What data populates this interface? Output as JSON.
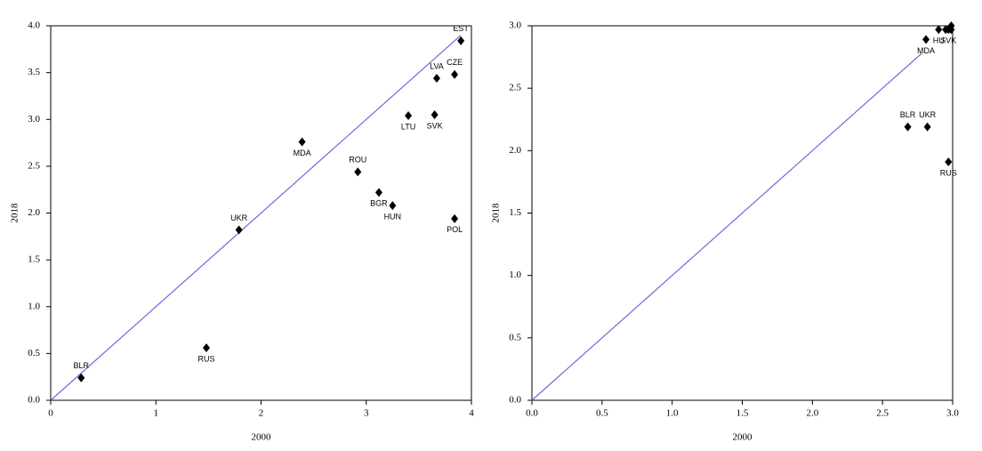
{
  "chart_data": [
    {
      "type": "scatter",
      "x_label": "2000",
      "y_label": "2018",
      "x": [
        0.29,
        1.48,
        1.79,
        2.39,
        2.92,
        3.12,
        3.25,
        3.4,
        3.65,
        3.67,
        3.84,
        3.9,
        3.84
      ],
      "values": [
        0.24,
        0.56,
        1.82,
        2.76,
        2.44,
        2.22,
        2.08,
        3.04,
        3.05,
        3.44,
        3.48,
        3.84,
        1.94
      ],
      "labels": [
        "BLR",
        "RUS",
        "UKR",
        "MDA",
        "ROU",
        "BGR",
        "HUN",
        "LTU",
        "SVK",
        "LVA",
        "CZE",
        "EST",
        "POL"
      ],
      "color": "#000000",
      "reference_line": {
        "x": [
          0,
          3.9
        ],
        "values": [
          0,
          3.9
        ],
        "color": "#6b6bdc"
      },
      "xlim": [
        0,
        4
      ],
      "ylim": [
        0,
        4
      ],
      "xticks": [
        0,
        1,
        2,
        3,
        4
      ],
      "yticks": [
        {
          "value": 0,
          "label": "0.0"
        },
        {
          "value": 0.5,
          "label": "0.5"
        },
        {
          "value": 1,
          "label": "1.0"
        },
        {
          "value": 1.5,
          "label": "1.5"
        },
        {
          "value": 2,
          "label": "2.0"
        },
        {
          "value": 2.5,
          "label": "2.5"
        },
        {
          "value": 3,
          "label": "3.0"
        },
        {
          "value": 3.5,
          "label": "3.5"
        },
        {
          "value": 4,
          "label": "4.0"
        }
      ]
    },
    {
      "type": "scatter",
      "x_label": "2000",
      "y_label": "2018",
      "x": [
        2.68,
        2.82,
        2.97,
        2.81,
        2.9,
        2.97,
        2.95,
        2.99,
        2.99
      ],
      "values": [
        2.19,
        2.19,
        1.91,
        2.89,
        2.97,
        2.97,
        2.97,
        2.97,
        3.0
      ],
      "labels": [
        "BLR",
        "UKR",
        "RUS",
        "MDA",
        "HU",
        "SVK",
        null,
        null,
        null
      ],
      "color": "#000000",
      "reference_line": {
        "x": [
          0,
          2.78
        ],
        "values": [
          0,
          2.78
        ],
        "color": "#6b6bdc"
      },
      "xlim": [
        0,
        3
      ],
      "ylim": [
        0,
        3
      ],
      "xticks": [
        {
          "value": 0,
          "label": "0.0"
        },
        {
          "value": 0.5,
          "label": "0.5"
        },
        {
          "value": 1,
          "label": "1.0"
        },
        {
          "value": 1.5,
          "label": "1.5"
        },
        {
          "value": 2,
          "label": "2.0"
        },
        {
          "value": 2.5,
          "label": "2.5"
        },
        {
          "value": 3,
          "label": "3.0"
        }
      ],
      "yticks": [
        {
          "value": 0,
          "label": "0.0"
        },
        {
          "value": 0.5,
          "label": "0.5"
        },
        {
          "value": 1,
          "label": "1.0"
        },
        {
          "value": 1.5,
          "label": "1.5"
        },
        {
          "value": 2,
          "label": "2.0"
        },
        {
          "value": 2.5,
          "label": "2.5"
        },
        {
          "value": 3,
          "label": "3.0"
        }
      ]
    }
  ]
}
